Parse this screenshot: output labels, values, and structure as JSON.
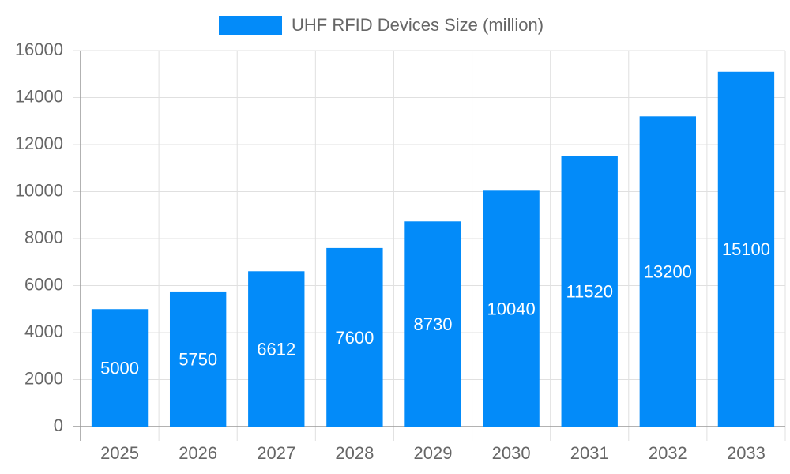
{
  "chart_data": {
    "type": "bar",
    "categories": [
      "2025",
      "2026",
      "2027",
      "2028",
      "2029",
      "2030",
      "2031",
      "2032",
      "2033"
    ],
    "series": [
      {
        "name": "UHF RFID Devices Size (million)",
        "color": "#038bf9",
        "values": [
          5000,
          5750,
          6612,
          7600,
          8730,
          10040,
          11520,
          13200,
          15100
        ]
      }
    ],
    "ylim": [
      0,
      16000
    ],
    "yticks": [
      0,
      2000,
      4000,
      6000,
      8000,
      10000,
      12000,
      14000,
      16000
    ],
    "grid": true,
    "legend": "top"
  }
}
